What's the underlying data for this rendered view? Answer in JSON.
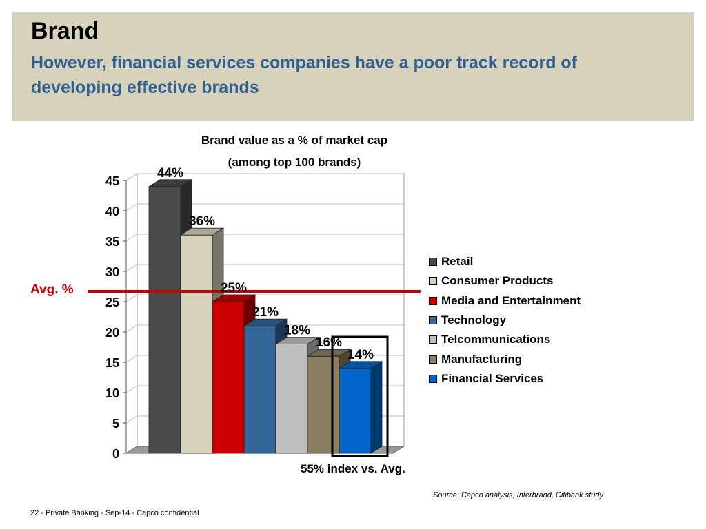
{
  "header": {
    "title": "Brand",
    "subtitle": "However, financial services companies have a poor track record of developing effective brands"
  },
  "chart_data": {
    "type": "bar",
    "title_line1": "Brand value as a % of market cap",
    "title_line2": "(among top 100 brands)",
    "categories": [
      "Retail",
      "Consumer Products",
      "Media and Entertainment",
      "Technology",
      "Telcommunications",
      "Manufacturing",
      "Financial Services"
    ],
    "values": [
      44,
      36,
      25,
      21,
      18,
      16,
      14
    ],
    "data_labels": [
      "44%",
      "36%",
      "25%",
      "21%",
      "18%",
      "16%",
      "14%"
    ],
    "colors": [
      "#4a4a4a",
      "#d6d2bb",
      "#cc0000",
      "#336699",
      "#c0c0c0",
      "#8c7e62",
      "#0066cc"
    ],
    "ylim": [
      0,
      45
    ],
    "yticks": [
      "0",
      "5",
      "10",
      "15",
      "20",
      "25",
      "30",
      "35",
      "40",
      "45"
    ],
    "grid": true,
    "legend_position": "right",
    "average_line": {
      "label": "Avg. %",
      "value": 26.5,
      "color": "#cc0000"
    },
    "highlight_note": "55% index vs. Avg."
  },
  "source": "Source: Capco analysis; Interbrand, Citibank study",
  "footer": "22 - Private Banking  - Sep-14 - Capco confidential"
}
